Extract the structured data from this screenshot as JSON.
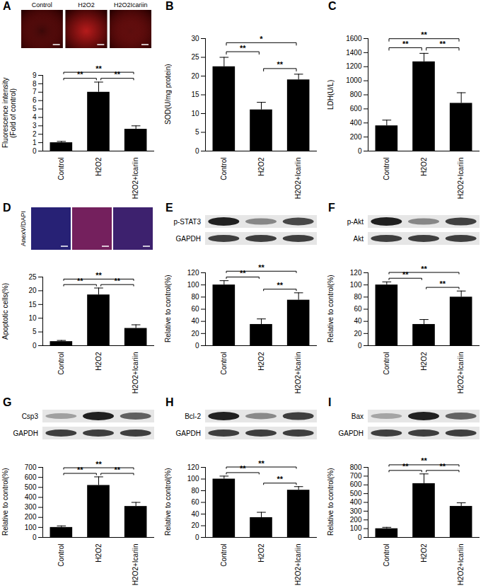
{
  "chart_data": [
    {
      "type": "bar",
      "panel": "A",
      "image_labels": [
        "Control",
        "H2O2",
        "H2O2Icariin"
      ],
      "categories": [
        "Control",
        "H2O2",
        "H2O2+Icariin"
      ],
      "values": [
        1,
        7,
        2.6
      ],
      "errors": [
        0.15,
        1.2,
        0.4
      ],
      "color": "#000000",
      "ylabel": "Fluorescence intensity (Fold of control)",
      "ylim": [
        0,
        9
      ],
      "yticks": [
        0,
        1,
        2,
        3,
        4,
        5,
        6,
        7,
        8,
        9
      ],
      "significance": [
        {
          "from": "Control",
          "to": "H2O2",
          "label": "**"
        },
        {
          "from": "H2O2",
          "to": "H2O2+Icariin",
          "label": "**"
        },
        {
          "from": "Control",
          "to": "H2O2+Icariin",
          "label": "**"
        }
      ]
    },
    {
      "type": "bar",
      "panel": "B",
      "categories": [
        "Control",
        "H2O2",
        "H2O2+Icariin"
      ],
      "values": [
        22.5,
        11,
        19
      ],
      "errors": [
        2.5,
        2,
        1.5
      ],
      "color": "#000000",
      "ylabel": "SOD(U/mg protein)",
      "ylim": [
        0,
        30
      ],
      "yticks": [
        0,
        5,
        10,
        15,
        20,
        25,
        30
      ],
      "significance": [
        {
          "from": "Control",
          "to": "H2O2",
          "label": "**"
        },
        {
          "from": "H2O2",
          "to": "H2O2+Icariin",
          "label": "**"
        },
        {
          "from": "Control",
          "to": "H2O2+Icariin",
          "label": "*"
        }
      ]
    },
    {
      "type": "bar",
      "panel": "C",
      "categories": [
        "Control",
        "H2O2",
        "H2O2+Icariin"
      ],
      "values": [
        360,
        1270,
        680
      ],
      "errors": [
        80,
        120,
        150
      ],
      "color": "#000000",
      "ylabel": "LDH(U/L)",
      "ylim": [
        0,
        1600
      ],
      "yticks": [
        0,
        200,
        400,
        600,
        800,
        1000,
        1200,
        1400,
        1600
      ],
      "significance": [
        {
          "from": "Control",
          "to": "H2O2",
          "label": "**"
        },
        {
          "from": "H2O2",
          "to": "H2O2+Icariin",
          "label": "**"
        },
        {
          "from": "Control",
          "to": "H2O2+Icariin",
          "label": "**"
        }
      ]
    },
    {
      "type": "bar",
      "panel": "D",
      "image_label": "AnexV/DAPI",
      "categories": [
        "Control",
        "H2O2",
        "H2O2+Icariin"
      ],
      "values": [
        1.5,
        18.5,
        6.3
      ],
      "errors": [
        0.4,
        2.5,
        1.3
      ],
      "color": "#000000",
      "ylabel": "Apoptotic cells(%)",
      "ylim": [
        0,
        25
      ],
      "yticks": [
        0,
        5,
        10,
        15,
        20,
        25
      ],
      "significance": [
        {
          "from": "Control",
          "to": "H2O2",
          "label": "**"
        },
        {
          "from": "H2O2",
          "to": "H2O2+Icariin",
          "label": "**"
        },
        {
          "from": "Control",
          "to": "H2O2+Icariin",
          "label": "**"
        }
      ]
    },
    {
      "type": "bar",
      "panel": "E",
      "blot_labels": [
        "p-STAT3",
        "GAPDH"
      ],
      "categories": [
        "Control",
        "H2O2",
        "H2O2+Icariin"
      ],
      "values": [
        100,
        35,
        75
      ],
      "errors": [
        7,
        9,
        12
      ],
      "color": "#000000",
      "ylabel": "Relative to control(%)",
      "ylim": [
        0,
        120
      ],
      "yticks": [
        0,
        20,
        40,
        60,
        80,
        100,
        120
      ],
      "significance": [
        {
          "from": "Control",
          "to": "H2O2",
          "label": "**"
        },
        {
          "from": "H2O2",
          "to": "H2O2+Icariin",
          "label": "**"
        },
        {
          "from": "Control",
          "to": "H2O2+Icariin",
          "label": "**"
        }
      ]
    },
    {
      "type": "bar",
      "panel": "F",
      "blot_labels": [
        "p-Akt",
        "Akt"
      ],
      "categories": [
        "Control",
        "H2O2",
        "H2O2+Icariin"
      ],
      "values": [
        100,
        35,
        80
      ],
      "errors": [
        5,
        8,
        10
      ],
      "color": "#000000",
      "ylabel": "Relative to control(%)",
      "ylim": [
        0,
        120
      ],
      "yticks": [
        0,
        20,
        40,
        60,
        80,
        100,
        120
      ],
      "significance": [
        {
          "from": "Control",
          "to": "H2O2",
          "label": "**"
        },
        {
          "from": "H2O2",
          "to": "H2O2+Icariin",
          "label": "**"
        },
        {
          "from": "Control",
          "to": "H2O2+Icariin",
          "label": "**"
        }
      ]
    },
    {
      "type": "bar",
      "panel": "G",
      "blot_labels": [
        "Csp3",
        "GAPDH"
      ],
      "categories": [
        "Control",
        "H2O2",
        "H2O2+Icariin"
      ],
      "values": [
        100,
        520,
        310
      ],
      "errors": [
        15,
        85,
        40
      ],
      "color": "#000000",
      "ylabel": "Relative to control(%)",
      "ylim": [
        0,
        700
      ],
      "yticks": [
        0,
        100,
        200,
        300,
        400,
        500,
        600,
        700
      ],
      "significance": [
        {
          "from": "Control",
          "to": "H2O2",
          "label": "**"
        },
        {
          "from": "H2O2",
          "to": "H2O2+Icariin",
          "label": "**"
        },
        {
          "from": "Control",
          "to": "H2O2+Icariin",
          "label": "**"
        }
      ]
    },
    {
      "type": "bar",
      "panel": "H",
      "blot_labels": [
        "Bcl-2",
        "GAPDH"
      ],
      "categories": [
        "Control",
        "H2O2",
        "H2O2+Icariin"
      ],
      "values": [
        100,
        34,
        81
      ],
      "errors": [
        5,
        9,
        6
      ],
      "color": "#000000",
      "ylabel": "Relative to control(%)",
      "ylim": [
        0,
        120
      ],
      "yticks": [
        0,
        20,
        40,
        60,
        80,
        100,
        120
      ],
      "significance": [
        {
          "from": "Control",
          "to": "H2O2",
          "label": "**"
        },
        {
          "from": "H2O2",
          "to": "H2O2+Icariin",
          "label": "**"
        },
        {
          "from": "Control",
          "to": "H2O2+Icariin",
          "label": "**"
        }
      ]
    },
    {
      "type": "bar",
      "panel": "I",
      "blot_labels": [
        "Bax",
        "GAPDH"
      ],
      "categories": [
        "Control",
        "H2O2",
        "H2O2+Icariin"
      ],
      "values": [
        100,
        615,
        355
      ],
      "errors": [
        15,
        110,
        40
      ],
      "color": "#000000",
      "ylabel": "Relative to control(%)",
      "ylim": [
        0,
        800
      ],
      "yticks": [
        0,
        100,
        200,
        300,
        400,
        500,
        600,
        700,
        800
      ],
      "significance": [
        {
          "from": "Control",
          "to": "H2O2",
          "label": "**"
        },
        {
          "from": "H2O2",
          "to": "H2O2+Icariin",
          "label": "**"
        },
        {
          "from": "Control",
          "to": "H2O2+Icariin",
          "label": "**"
        }
      ]
    }
  ]
}
